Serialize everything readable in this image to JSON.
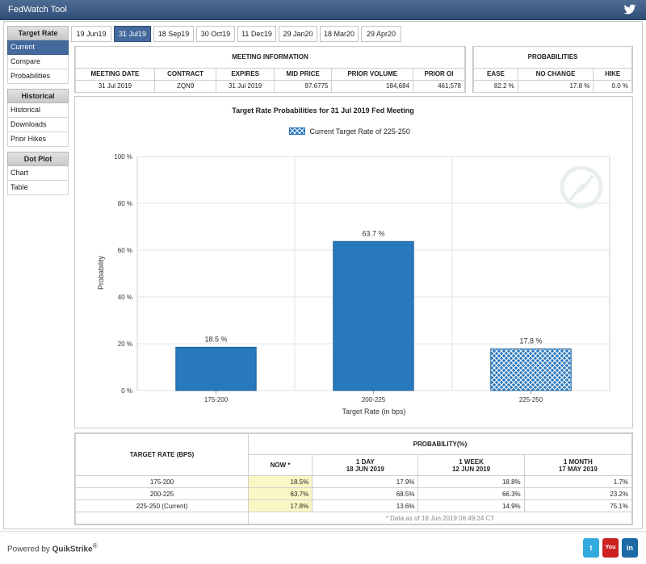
{
  "app": {
    "title": "FedWatch Tool"
  },
  "sidebar": {
    "groups": [
      {
        "heading": "Target Rate",
        "items": [
          "Current",
          "Compare",
          "Probabilities"
        ]
      },
      {
        "heading": "Historical",
        "items": [
          "Historical",
          "Downloads",
          "Prior Hikes"
        ]
      },
      {
        "heading": "Dot Plot",
        "items": [
          "Chart",
          "Table"
        ]
      }
    ],
    "active": "Current"
  },
  "tabs": [
    "19 Jun19",
    "31 Jul19",
    "18 Sep19",
    "30 Oct19",
    "11 Dec19",
    "29 Jan20",
    "18 Mar20",
    "29 Apr20"
  ],
  "active_tab": "31 Jul19",
  "meeting_info": {
    "heading": "MEETING INFORMATION",
    "columns": [
      "MEETING DATE",
      "CONTRACT",
      "EXPIRES",
      "MID PRICE",
      "PRIOR VOLUME",
      "PRIOR OI"
    ],
    "values": [
      "31 Jul 2019",
      "ZQN9",
      "31 Jul 2019",
      "97.6775",
      "184,684",
      "461,578"
    ]
  },
  "probabilities": {
    "heading": "PROBABILITIES",
    "columns": [
      "EASE",
      "NO CHANGE",
      "HIKE"
    ],
    "values": [
      "82.2 %",
      "17.8 %",
      "0.0 %"
    ]
  },
  "chart_data": {
    "type": "bar",
    "title": "Target Rate Probabilities for 31 Jul 2019 Fed Meeting",
    "legend": "Current Target Rate of 225-250",
    "xlabel": "Target Rate (in bps)",
    "ylabel": "Probability",
    "categories": [
      "175-200",
      "200-225",
      "225-250"
    ],
    "values": [
      18.5,
      63.7,
      17.8
    ],
    "value_labels": [
      "18.5 %",
      "63.7 %",
      "17.8 %"
    ],
    "current_category": "225-250",
    "ylim": [
      0,
      100
    ],
    "yticks": [
      0,
      20,
      40,
      60,
      80,
      100
    ],
    "ytick_labels": [
      "0 %",
      "20 %",
      "40 %",
      "60 %",
      "80 %",
      "100 %"
    ],
    "grid": true,
    "colors": {
      "bar": "#2878bd",
      "bar_edge": "#1d5f99",
      "grid": "#e3e3e3"
    }
  },
  "prob_table": {
    "rate_header": "TARGET RATE (BPS)",
    "group_header": "PROBABILITY(%)",
    "columns": [
      {
        "label": "NOW *",
        "sub": ""
      },
      {
        "label": "1 DAY",
        "sub": "18 JUN 2019"
      },
      {
        "label": "1 WEEK",
        "sub": "12 JUN 2019"
      },
      {
        "label": "1 MONTH",
        "sub": "17 MAY 2019"
      }
    ],
    "rows": [
      {
        "rate": "175-200",
        "values": [
          "18.5%",
          "17.9%",
          "18.8%",
          "1.7%"
        ]
      },
      {
        "rate": "200-225",
        "values": [
          "63.7%",
          "68.5%",
          "66.3%",
          "23.2%"
        ]
      },
      {
        "rate": "225-250 (Current)",
        "values": [
          "17.8%",
          "13.6%",
          "14.9%",
          "75.1%"
        ]
      }
    ],
    "note": "* Data as of 19 Jun 2019 06:49:24 CT"
  },
  "footer": {
    "powered_by": "Powered by",
    "brand": "QuikStrike",
    "brand_mark": "®",
    "social": [
      {
        "icon": "twitter-icon",
        "label": "t",
        "color": "#33aadd"
      },
      {
        "icon": "youtube-icon",
        "label": "You",
        "color": "#cc2222"
      },
      {
        "icon": "linkedin-icon",
        "label": "in",
        "color": "#1b6aa5"
      }
    ]
  }
}
